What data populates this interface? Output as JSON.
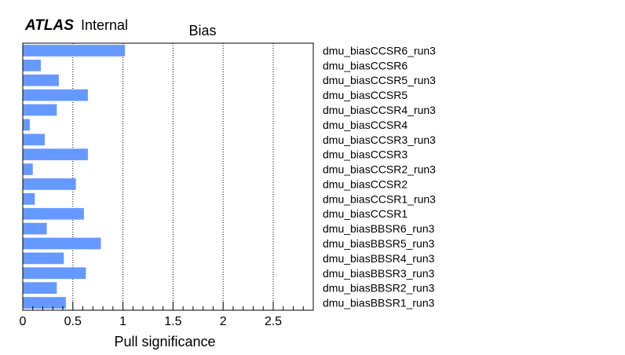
{
  "experiment": "ATLAS",
  "status": "Internal",
  "chart_data": {
    "type": "bar",
    "orientation": "horizontal",
    "title": "Bias",
    "xlabel": "Pull significance",
    "ylabel": "",
    "xlim": [
      0,
      2.9
    ],
    "xticks": [
      "0",
      "0.5",
      "1",
      "1.5",
      "2",
      "2.5"
    ],
    "xtick_values": [
      0,
      0.5,
      1,
      1.5,
      2,
      2.5
    ],
    "grid": "vertical dotted lines",
    "bar_color": "#6699ff",
    "categories": [
      "dmu_biasCCSR6_run3",
      "dmu_biasCCSR6",
      "dmu_biasCCSR5_run3",
      "dmu_biasCCSR5",
      "dmu_biasCCSR4_run3",
      "dmu_biasCCSR4",
      "dmu_biasCCSR3_run3",
      "dmu_biasCCSR3",
      "dmu_biasCCSR2_run3",
      "dmu_biasCCSR2",
      "dmu_biasCCSR1_run3",
      "dmu_biasCCSR1",
      "dmu_biasBBSR6_run3",
      "dmu_biasBBSR5_run3",
      "dmu_biasBBSR4_run3",
      "dmu_biasBBSR3_run3",
      "dmu_biasBBSR2_run3",
      "dmu_biasBBSR1_run3"
    ],
    "values": [
      1.02,
      0.18,
      0.36,
      0.65,
      0.34,
      0.07,
      0.22,
      0.65,
      0.1,
      0.53,
      0.12,
      0.61,
      0.24,
      0.78,
      0.41,
      0.63,
      0.34,
      0.43
    ]
  }
}
